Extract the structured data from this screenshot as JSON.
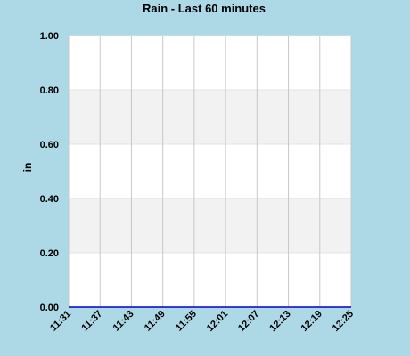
{
  "chart_data": {
    "type": "line",
    "title": "Rain - Last 60 minutes",
    "xlabel": "",
    "ylabel": "in",
    "x": [
      "11:31",
      "11:37",
      "11:43",
      "11:49",
      "11:55",
      "12:01",
      "12:07",
      "12:13",
      "12:19",
      "12:25"
    ],
    "y_ticks": [
      "0.00",
      "0.20",
      "0.40",
      "0.60",
      "0.80",
      "1.00"
    ],
    "ylim": [
      0,
      1
    ],
    "grid": true,
    "series": [
      {
        "values": [
          0,
          0,
          0,
          0,
          0,
          0,
          0,
          0,
          0,
          0
        ],
        "color": "#0000cc"
      }
    ]
  },
  "colors": {
    "background": "#add8e6",
    "plot_bg": "#ffffff",
    "band": "#f2f2f2",
    "grid": "#c8c8c8",
    "series": "#0000cc"
  }
}
